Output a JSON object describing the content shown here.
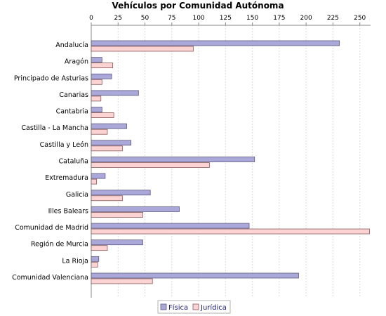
{
  "colors": {
    "fisica_fill": "#aaa8d8",
    "fisica_stroke": "#5a5880",
    "juridica_fill": "#fcd3d3",
    "juridica_stroke": "#8a5a5a",
    "grid": "#dcdcdc",
    "axis": "#888888"
  },
  "chart_data": {
    "type": "bar",
    "orientation": "horizontal",
    "title": "Vehículos por Comunidad Autónoma",
    "xlabel": "",
    "ylabel": "",
    "xlim": [
      0,
      260
    ],
    "x_ticks": [
      0,
      25,
      50,
      75,
      100,
      125,
      150,
      175,
      200,
      225,
      250
    ],
    "x_tick_labels": [
      "0",
      "25",
      "50",
      "75",
      "100",
      "125",
      "150",
      "175",
      "200",
      "225",
      "250"
    ],
    "x_axis_position": "top",
    "grid": true,
    "legend_position": "bottom-center",
    "categories": [
      "Andalucía",
      "Aragón",
      "Principado de Asturias",
      "Canarias",
      "Cantabria",
      "Castilla - La Mancha",
      "Castilla y León",
      "Cataluña",
      "Extremadura",
      "Galicia",
      "Illes Balears",
      "Comunidad de Madrid",
      "Región de Murcia",
      "La Rioja",
      "Comunidad Valenciana"
    ],
    "series": [
      {
        "name": "Física",
        "values": [
          231,
          10,
          19,
          44,
          10,
          33,
          37,
          152,
          13,
          55,
          82,
          147,
          48,
          7,
          193
        ]
      },
      {
        "name": "Jurídica",
        "values": [
          95,
          20,
          10,
          9,
          21,
          15,
          29,
          110,
          5,
          29,
          48,
          259,
          15,
          6,
          57
        ]
      }
    ]
  }
}
